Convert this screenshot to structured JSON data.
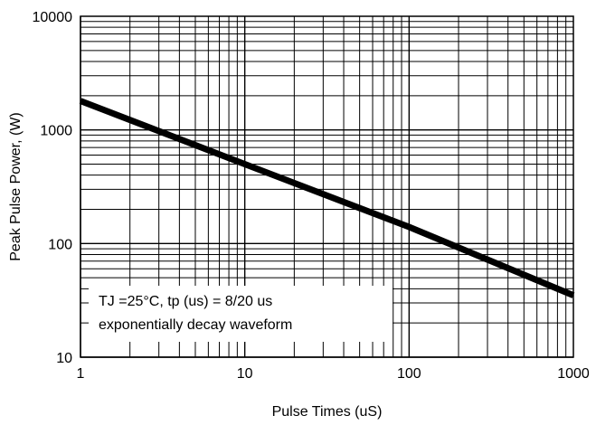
{
  "chart_data": {
    "type": "line",
    "xlabel": "Pulse Times (uS)",
    "ylabel": "Peak Pulse Power, (W)",
    "x_scale": "log",
    "y_scale": "log",
    "xlim": [
      1,
      1000
    ],
    "ylim": [
      10,
      10000
    ],
    "x_ticks": [
      "1",
      "10",
      "100",
      "1000"
    ],
    "y_ticks": [
      "10",
      "100",
      "1000",
      "10000"
    ],
    "grid": true,
    "line_color": "#000000",
    "series": [
      {
        "x": [
          1,
          10,
          100,
          1000
        ],
        "y": [
          1800,
          500,
          140,
          35
        ]
      }
    ],
    "annotation": {
      "line1": "TJ =25°C, tp (us) = 8/20 us",
      "line2": "exponentially decay waveform",
      "position": "bottom-left"
    }
  }
}
